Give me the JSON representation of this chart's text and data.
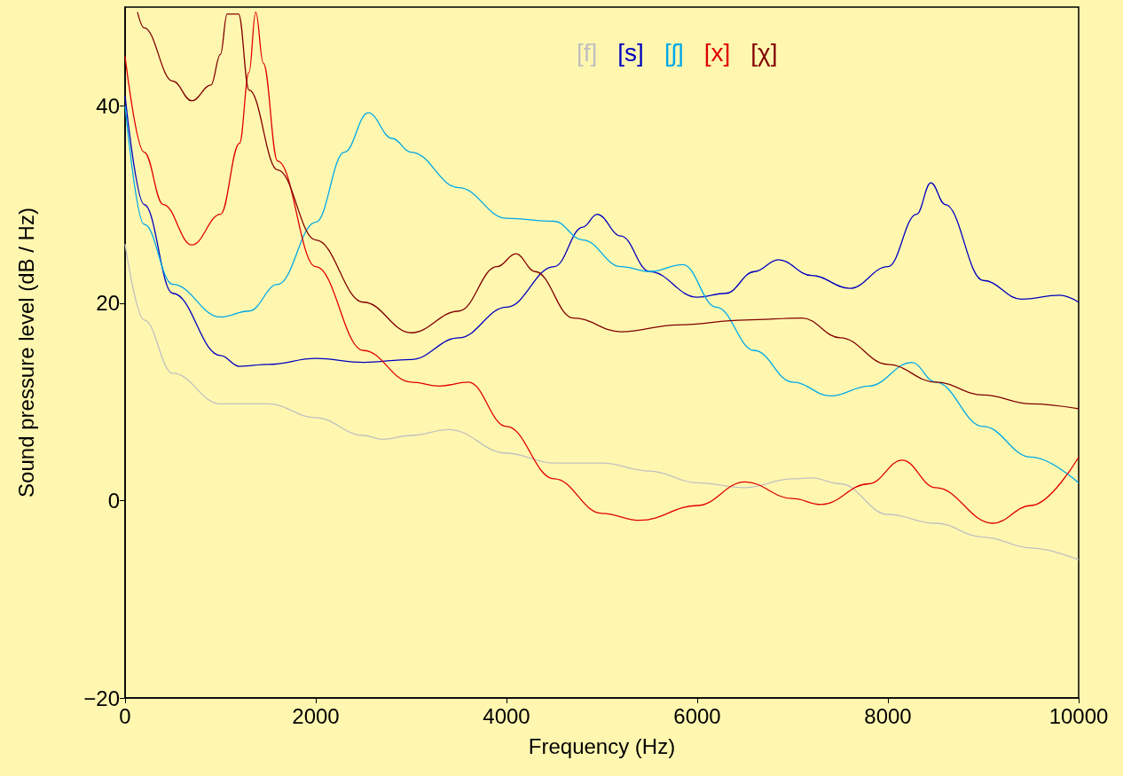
{
  "chart_data": {
    "type": "line",
    "xlabel": "Frequency (Hz)",
    "ylabel": "Sound pressure level (dB / Hz)",
    "xlim": [
      0,
      10000
    ],
    "xticks": [
      0,
      2000,
      4000,
      6000,
      8000,
      10000
    ],
    "ylim": [
      -20,
      50
    ],
    "yticks": [
      {
        "value": -20,
        "label": "−20"
      },
      0,
      20,
      40
    ],
    "grid": false,
    "legend": "top",
    "marker": "none",
    "line_style": "solid",
    "series": [
      {
        "name": "[f]",
        "color": "#c0c0c0",
        "x": [
          0,
          200,
          500,
          1000,
          1500,
          2000,
          2500,
          2700,
          3000,
          3400,
          4000,
          4500,
          5000,
          5500,
          6000,
          6500,
          7000,
          7200,
          7500,
          8000,
          8500,
          9000,
          9500,
          10000
        ],
        "values": [
          26,
          18.3,
          12.9,
          9.8,
          9.8,
          8.4,
          6.6,
          6.2,
          6.6,
          7.2,
          4.8,
          3.8,
          3.8,
          3.0,
          1.8,
          1.3,
          2.2,
          2.3,
          1.7,
          -1.4,
          -2.3,
          -3.7,
          -4.8,
          -6.0
        ]
      },
      {
        "name": "[s]",
        "color": "#0000c0",
        "x": [
          0,
          200,
          500,
          1000,
          1200,
          1500,
          2000,
          2500,
          3000,
          3500,
          4000,
          4500,
          4800,
          4950,
          5200,
          5500,
          6000,
          6300,
          6600,
          6850,
          7200,
          7600,
          8000,
          8300,
          8450,
          8600,
          9000,
          9400,
          9800,
          10000
        ],
        "values": [
          41,
          30,
          21,
          14.7,
          13.6,
          13.8,
          14.4,
          14.0,
          14.3,
          16.5,
          19.6,
          23.7,
          27.7,
          29.0,
          26.8,
          23.2,
          20.6,
          21,
          23.2,
          24.4,
          22.8,
          21.5,
          23.7,
          29,
          32.2,
          30,
          22.3,
          20.4,
          20.8,
          20.1
        ]
      },
      {
        "name": "[ʃ]",
        "color": "#00a8e8",
        "x": [
          0,
          200,
          500,
          1000,
          1300,
          1600,
          2000,
          2300,
          2550,
          2800,
          3000,
          3500,
          4000,
          4500,
          4800,
          5200,
          5500,
          5850,
          6200,
          6600,
          7000,
          7400,
          7800,
          8250,
          8500,
          9000,
          9500,
          10000
        ],
        "values": [
          40,
          28,
          21.9,
          18.6,
          19.2,
          21.9,
          28.2,
          35.3,
          39.3,
          36.7,
          35.3,
          31.7,
          28.6,
          28.3,
          26.4,
          23.7,
          23.2,
          23.9,
          19.6,
          15.2,
          12.0,
          10.6,
          11.6,
          14.0,
          12.0,
          7.5,
          4.4,
          1.8
        ]
      },
      {
        "name": "[x]",
        "color": "#e00000",
        "x": [
          0,
          200,
          400,
          700,
          1000,
          1200,
          1300,
          1370,
          1450,
          1600,
          2000,
          2500,
          3000,
          3300,
          3600,
          4000,
          4500,
          5000,
          5400,
          6000,
          6500,
          7000,
          7300,
          7800,
          8150,
          8500,
          9100,
          9500,
          10000
        ],
        "values": [
          45,
          35.3,
          30,
          25.9,
          29,
          36.2,
          43.4,
          49.5,
          44.3,
          34.4,
          23.7,
          15.2,
          12.0,
          11.6,
          12.0,
          7.5,
          2.2,
          -1.3,
          -2.0,
          -0.5,
          1.9,
          0.2,
          -0.4,
          1.7,
          4.1,
          1.3,
          -2.3,
          -0.5,
          4.4
        ]
      },
      {
        "name": "[χ]",
        "color": "#800000",
        "x": [
          130,
          200,
          500,
          700,
          900,
          1000,
          1070,
          1190,
          1300,
          1600,
          2000,
          2500,
          3000,
          3500,
          3900,
          4100,
          4300,
          4700,
          5200,
          5800,
          6500,
          7100,
          7500,
          8000,
          8500,
          9000,
          9500,
          10000
        ],
        "values": [
          49.5,
          47.9,
          42.5,
          40.5,
          42.1,
          45.2,
          49.3,
          49.3,
          41.6,
          33.5,
          26.4,
          20.1,
          17.0,
          19.2,
          23.7,
          25.0,
          23.2,
          18.5,
          17.1,
          17.8,
          18.3,
          18.5,
          16.5,
          13.8,
          12.0,
          10.7,
          9.8,
          9.3
        ]
      }
    ]
  }
}
